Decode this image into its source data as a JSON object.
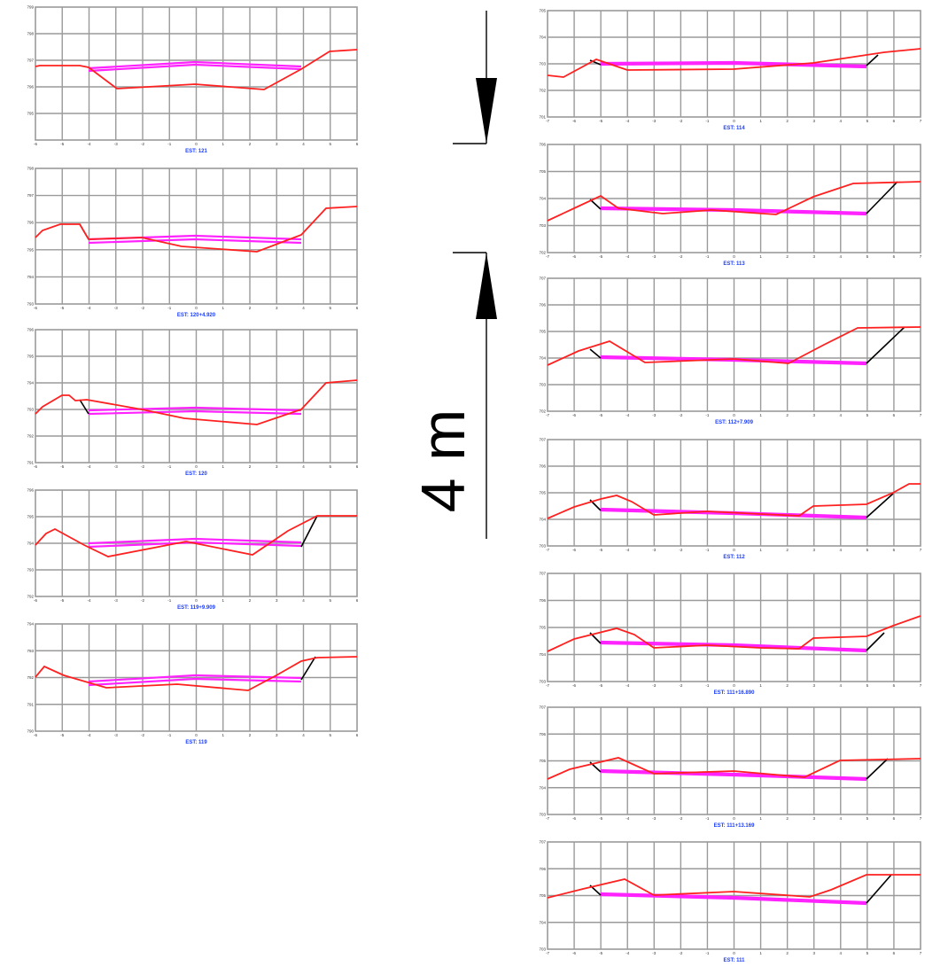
{
  "scale_bar": {
    "label": "4 m"
  },
  "colors": {
    "grid": "#9a9a9a",
    "terrain": "#ff2020",
    "design": "#ff22ff",
    "slope": "#000000",
    "station_label": "#1a3cff",
    "tick_label": "#333333",
    "scale_bar": "#000000"
  },
  "sections": [
    {
      "station": "EST: 121",
      "x_ticks": [
        "-6",
        "-5",
        "-4",
        "-3",
        "-2",
        "-1",
        "0",
        "1",
        "2",
        "3",
        "4",
        "5",
        "6"
      ],
      "y_ticks": [
        "799",
        "798",
        "797",
        "796",
        "795"
      ]
    },
    {
      "station": "EST: 120+4.920",
      "x_ticks": [
        "-6",
        "-5",
        "-4",
        "-3",
        "-2",
        "-1",
        "0",
        "1",
        "2",
        "3",
        "4",
        "5",
        "6"
      ],
      "y_ticks": [
        "798",
        "797",
        "796",
        "795",
        "794",
        "793"
      ]
    },
    {
      "station": "EST: 120",
      "x_ticks": [
        "-6",
        "-5",
        "-4",
        "-3",
        "-2",
        "-1",
        "0",
        "1",
        "2",
        "3",
        "4",
        "5",
        "6"
      ],
      "y_ticks": [
        "796",
        "795",
        "794",
        "793",
        "792",
        "791"
      ]
    },
    {
      "station": "EST: 119+9.909",
      "x_ticks": [
        "-6",
        "-5",
        "-4",
        "-3",
        "-2",
        "-1",
        "0",
        "1",
        "2",
        "3",
        "4",
        "5",
        "6"
      ],
      "y_ticks": [
        "796",
        "795",
        "794",
        "793",
        "792"
      ]
    },
    {
      "station": "EST: 119",
      "x_ticks": [
        "-6",
        "-5",
        "-4",
        "-3",
        "-2",
        "-1",
        "0",
        "1",
        "2",
        "3",
        "4",
        "5",
        "6"
      ],
      "y_ticks": [
        "794",
        "793",
        "792",
        "791",
        "790"
      ]
    },
    {
      "station": "EST: 114",
      "x_ticks": [
        "-7",
        "-6",
        "-5",
        "-4",
        "-3",
        "-2",
        "-1",
        "0",
        "1",
        "2",
        "3",
        "4",
        "5",
        "6",
        "7"
      ],
      "y_ticks": [
        "705",
        "704",
        "703",
        "702",
        "701"
      ]
    },
    {
      "station": "EST: 113",
      "x_ticks": [
        "-7",
        "-6",
        "-5",
        "-4",
        "-3",
        "-2",
        "-1",
        "0",
        "1",
        "2",
        "3",
        "4",
        "5",
        "6",
        "7"
      ],
      "y_ticks": [
        "706",
        "705",
        "704",
        "703",
        "702"
      ]
    },
    {
      "station": "EST: 112+7.909",
      "x_ticks": [
        "-7",
        "-6",
        "-5",
        "-4",
        "-3",
        "-2",
        "-1",
        "0",
        "1",
        "2",
        "3",
        "4",
        "5",
        "6",
        "7"
      ],
      "y_ticks": [
        "707",
        "706",
        "705",
        "704",
        "703",
        "702"
      ]
    },
    {
      "station": "EST: 112",
      "x_ticks": [
        "-7",
        "-6",
        "-5",
        "-4",
        "-3",
        "-2",
        "-1",
        "0",
        "1",
        "2",
        "3",
        "4",
        "5",
        "6",
        "7"
      ],
      "y_ticks": [
        "707",
        "706",
        "705",
        "704",
        "703"
      ]
    },
    {
      "station": "EST: 111+16.890",
      "x_ticks": [
        "-7",
        "-6",
        "-5",
        "-4",
        "-3",
        "-2",
        "-1",
        "0",
        "1",
        "2",
        "3",
        "4",
        "5",
        "6",
        "7"
      ],
      "y_ticks": [
        "707",
        "706",
        "705",
        "704",
        "703"
      ]
    },
    {
      "station": "EST: 111+13.169",
      "x_ticks": [
        "-7",
        "-6",
        "-5",
        "-4",
        "-3",
        "-2",
        "-1",
        "0",
        "1",
        "2",
        "3",
        "4",
        "5",
        "6",
        "7"
      ],
      "y_ticks": [
        "707",
        "706",
        "705",
        "704",
        "703"
      ]
    },
    {
      "station": "EST: 111",
      "x_ticks": [
        "-7",
        "-6",
        "-5",
        "-4",
        "-3",
        "-2",
        "-1",
        "0",
        "1",
        "2",
        "3",
        "4",
        "5",
        "6",
        "7"
      ],
      "y_ticks": [
        "707",
        "706",
        "705",
        "704",
        "703"
      ]
    }
  ]
}
